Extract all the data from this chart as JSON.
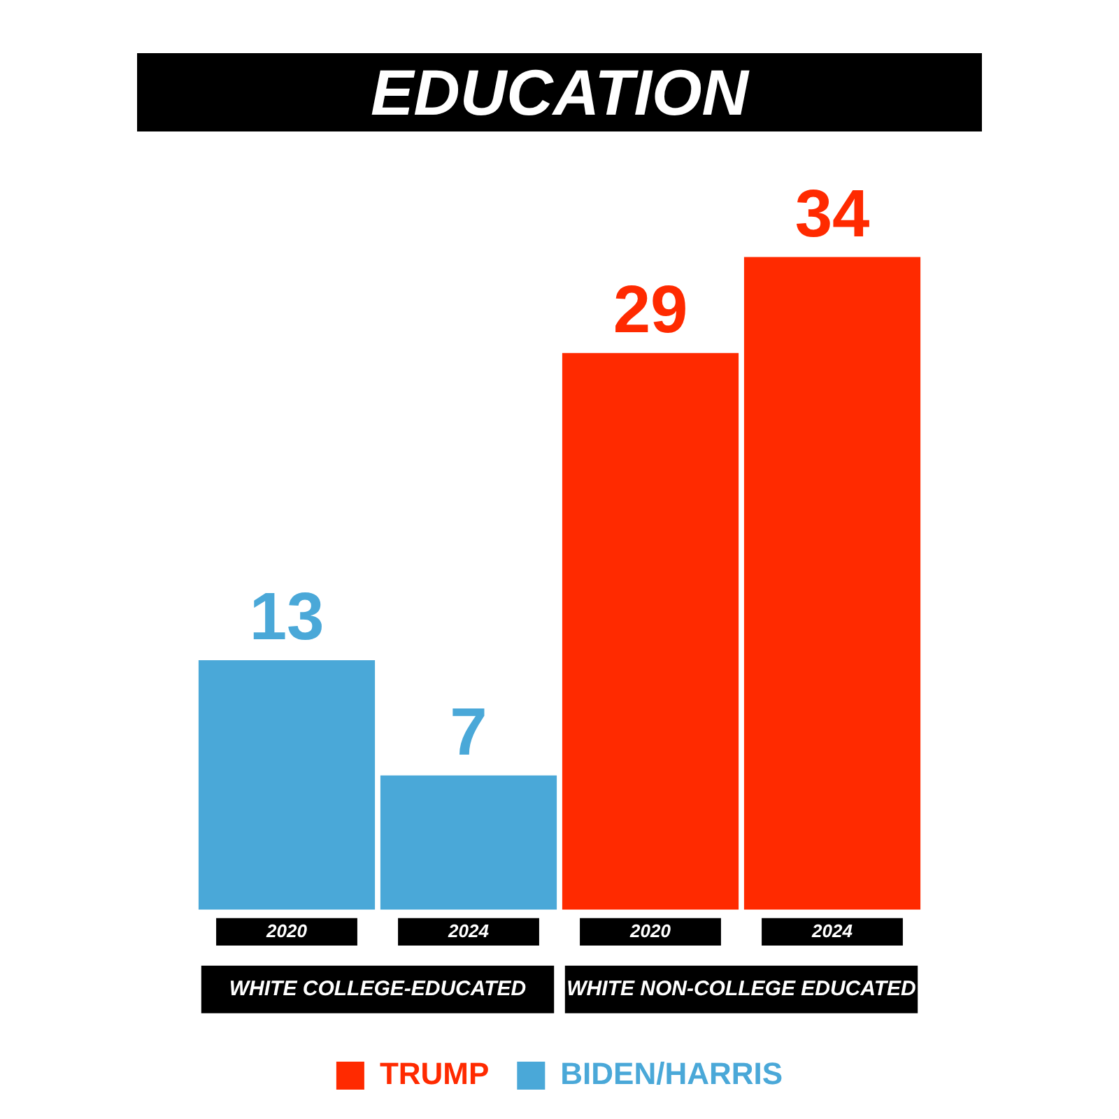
{
  "chart_data": {
    "type": "bar",
    "title": "EDUCATION",
    "categories": [
      "2020",
      "2024",
      "2020",
      "2024"
    ],
    "series": [
      {
        "name": "TRUMP",
        "color": "#ff2a00",
        "values": [
          null,
          null,
          29,
          34
        ]
      },
      {
        "name": "BIDEN/HARRIS",
        "color": "#4aa8d8",
        "values": [
          13,
          7,
          null,
          null
        ]
      }
    ],
    "annotations": [
      "WHITE COLLEGE-EDUCATED",
      "WHITE NON-COLLEGE EDUCATED"
    ],
    "data_labels": true,
    "legend": "bottom",
    "grid": false
  }
}
